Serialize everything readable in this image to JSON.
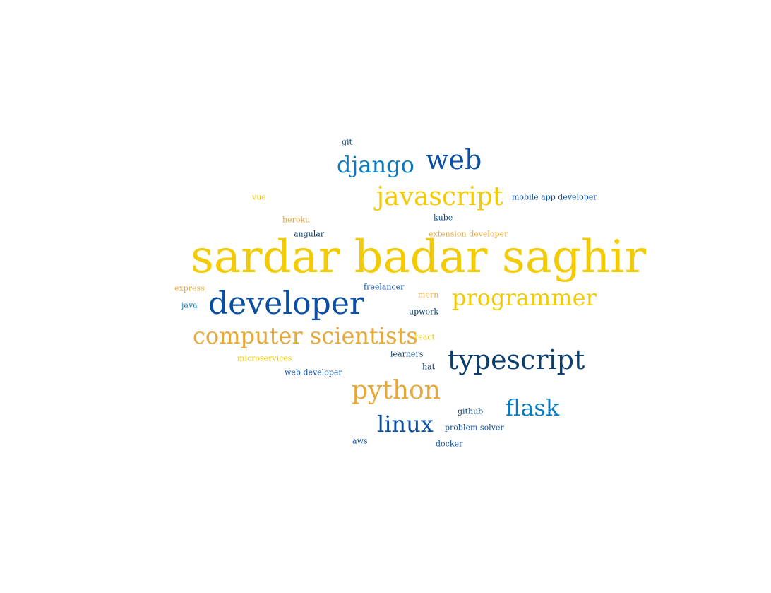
{
  "palette": {
    "yellow": "#f2cb05",
    "orange": "#e8a838",
    "blue": "#0a7abf",
    "darkblue": "#0b4fa3",
    "navy": "#0a3d6b"
  },
  "words": [
    {
      "text": "sardar badar saghir",
      "color": "yellow"
    },
    {
      "text": "developer",
      "color": "darkblue"
    },
    {
      "text": "typescript",
      "color": "navy"
    },
    {
      "text": "computer scientists",
      "color": "orange"
    },
    {
      "text": "programmer",
      "color": "yellow"
    },
    {
      "text": "javascript",
      "color": "yellow"
    },
    {
      "text": "python",
      "color": "orange"
    },
    {
      "text": "web",
      "color": "darkblue"
    },
    {
      "text": "django",
      "color": "blue"
    },
    {
      "text": "flask",
      "color": "blue"
    },
    {
      "text": "linux",
      "color": "darkblue"
    },
    {
      "text": "git",
      "color": "navy"
    },
    {
      "text": "vue",
      "color": "yellow"
    },
    {
      "text": "mobile app developer",
      "color": "darkblue"
    },
    {
      "text": "kube",
      "color": "darkblue"
    },
    {
      "text": "heroku",
      "color": "orange"
    },
    {
      "text": "angular",
      "color": "navy"
    },
    {
      "text": "extension developer",
      "color": "orange"
    },
    {
      "text": "express",
      "color": "orange"
    },
    {
      "text": "freelancer",
      "color": "darkblue"
    },
    {
      "text": "mern",
      "color": "orange"
    },
    {
      "text": "java",
      "color": "blue"
    },
    {
      "text": "upwork",
      "color": "navy"
    },
    {
      "text": "react",
      "color": "yellow"
    },
    {
      "text": "learners",
      "color": "navy"
    },
    {
      "text": "microservices",
      "color": "yellow"
    },
    {
      "text": "hat",
      "color": "navy"
    },
    {
      "text": "web developer",
      "color": "darkblue"
    },
    {
      "text": "github",
      "color": "navy"
    },
    {
      "text": "problem solver",
      "color": "darkblue"
    },
    {
      "text": "aws",
      "color": "darkblue"
    },
    {
      "text": "docker",
      "color": "darkblue"
    }
  ]
}
